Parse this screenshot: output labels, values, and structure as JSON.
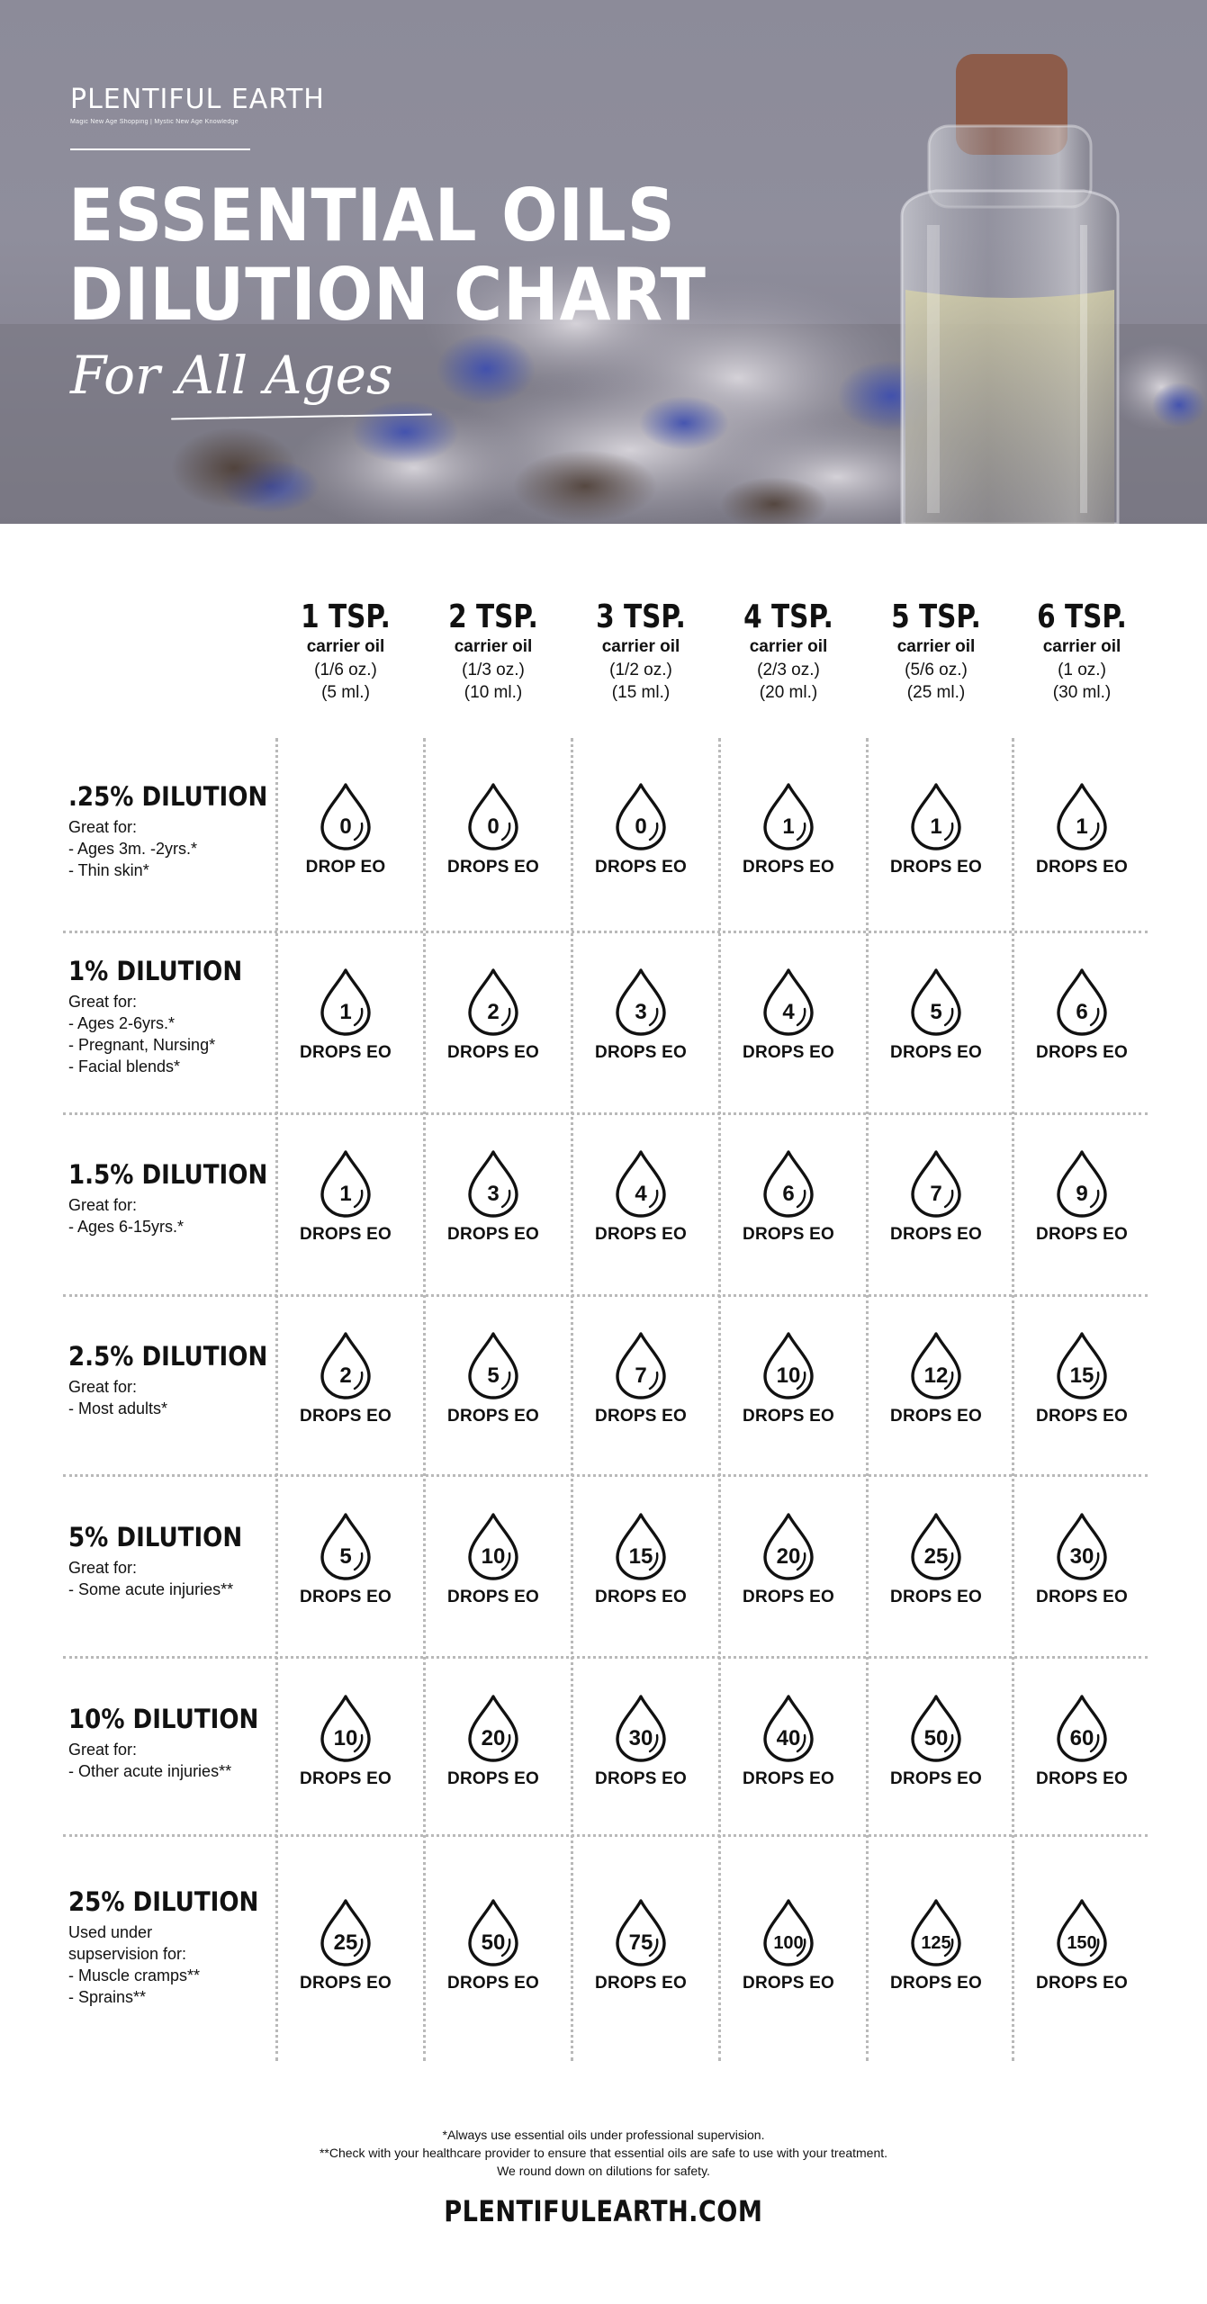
{
  "brand": {
    "name": "PLENTIFUL EARTH",
    "tagline": "Magic New Age Shopping | Mystic New Age Knowledge"
  },
  "hero": {
    "title_line1": "ESSENTIAL OILS",
    "title_line2": "DILUTION CHART",
    "subtitle": "For All Ages"
  },
  "columns": [
    {
      "amount": "1 TSP.",
      "carrier": "carrier oil",
      "oz": "(1/6 oz.)",
      "ml": "(5 ml.)"
    },
    {
      "amount": "2 TSP.",
      "carrier": "carrier oil",
      "oz": "(1/3 oz.)",
      "ml": "(10 ml.)"
    },
    {
      "amount": "3 TSP.",
      "carrier": "carrier oil",
      "oz": "(1/2 oz.)",
      "ml": "(15 ml.)"
    },
    {
      "amount": "4 TSP.",
      "carrier": "carrier oil",
      "oz": "(2/3 oz.)",
      "ml": "(20 ml.)"
    },
    {
      "amount": "5 TSP.",
      "carrier": "carrier oil",
      "oz": "(5/6 oz.)",
      "ml": "(25 ml.)"
    },
    {
      "amount": "6 TSP.",
      "carrier": "carrier oil",
      "oz": "(1 oz.)",
      "ml": "(30 ml.)"
    }
  ],
  "rows": [
    {
      "title": ".25% DILUTION",
      "notes": [
        "Great for:",
        "- Ages 3m. -2yrs.*",
        "- Thin skin*"
      ],
      "drops": [
        "0",
        "0",
        "0",
        "1",
        "1",
        "1"
      ],
      "labels": [
        "DROP EO",
        "DROPS EO",
        "DROPS EO",
        "DROPS EO",
        "DROPS EO",
        "DROPS EO"
      ]
    },
    {
      "title": "1% DILUTION",
      "notes": [
        "Great for:",
        "- Ages 2-6yrs.*",
        "- Pregnant, Nursing*",
        "- Facial blends*"
      ],
      "drops": [
        "1",
        "2",
        "3",
        "4",
        "5",
        "6"
      ],
      "labels": [
        "DROPS EO",
        "DROPS EO",
        "DROPS EO",
        "DROPS EO",
        "DROPS EO",
        "DROPS EO"
      ]
    },
    {
      "title": "1.5% DILUTION",
      "notes": [
        "Great for:",
        "- Ages 6-15yrs.*"
      ],
      "drops": [
        "1",
        "3",
        "4",
        "6",
        "7",
        "9"
      ],
      "labels": [
        "DROPS EO",
        "DROPS EO",
        "DROPS EO",
        "DROPS EO",
        "DROPS EO",
        "DROPS EO"
      ]
    },
    {
      "title": "2.5% DILUTION",
      "notes": [
        "Great for:",
        "- Most adults*"
      ],
      "drops": [
        "2",
        "5",
        "7",
        "10",
        "12",
        "15"
      ],
      "labels": [
        "DROPS EO",
        "DROPS EO",
        "DROPS EO",
        "DROPS EO",
        "DROPS EO",
        "DROPS EO"
      ]
    },
    {
      "title": "5% DILUTION",
      "notes": [
        "Great for:",
        "- Some acute injuries**"
      ],
      "drops": [
        "5",
        "10",
        "15",
        "20",
        "25",
        "30"
      ],
      "labels": [
        "DROPS EO",
        "DROPS EO",
        "DROPS EO",
        "DROPS EO",
        "DROPS EO",
        "DROPS EO"
      ]
    },
    {
      "title": "10% DILUTION",
      "notes": [
        "Great for:",
        "- Other acute injuries**"
      ],
      "drops": [
        "10",
        "20",
        "30",
        "40",
        "50",
        "60"
      ],
      "labels": [
        "DROPS EO",
        "DROPS EO",
        "DROPS EO",
        "DROPS EO",
        "DROPS EO",
        "DROPS EO"
      ]
    },
    {
      "title": "25% DILUTION",
      "notes": [
        "Used under",
        "supservision for:",
        "- Muscle cramps**",
        "- Sprains**"
      ],
      "drops": [
        "25",
        "50",
        "75",
        "100",
        "125",
        "150"
      ],
      "labels": [
        "DROPS EO",
        "DROPS EO",
        "DROPS EO",
        "DROPS EO",
        "DROPS EO",
        "DROPS EO"
      ]
    }
  ],
  "footnotes": [
    "*Always use essential oils under professional supervision.",
    "**Check with your healthcare provider to ensure that essential oils are safe to use with your treatment.",
    "We round down on dilutions for safety."
  ],
  "website": "PLENTIFULEARTH.COM",
  "icons": {
    "drop": "drop-icon",
    "bottle": "bottle-icon"
  }
}
